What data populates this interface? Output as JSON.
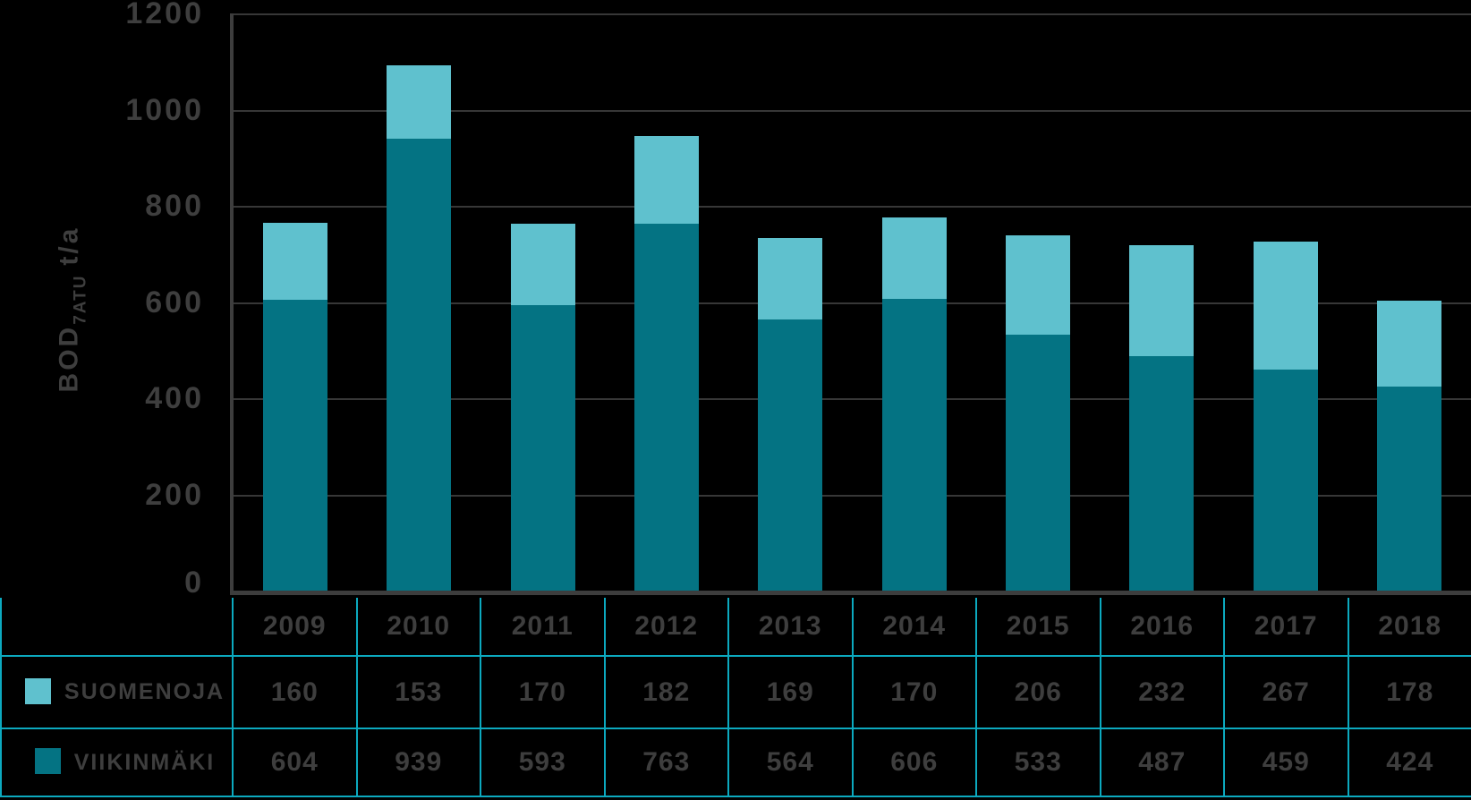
{
  "chart_data": {
    "type": "bar",
    "stacked": true,
    "title": "",
    "xlabel": "",
    "ylabel": {
      "prefix": "BOD",
      "subscript": "7ATU",
      "suffix": "t/a"
    },
    "ylim": [
      0,
      1200
    ],
    "yticks": [
      0,
      200,
      400,
      600,
      800,
      1000,
      1200
    ],
    "grid": true,
    "legend_position": "table-left-column",
    "categories": [
      "2009",
      "2010",
      "2011",
      "2012",
      "2013",
      "2014",
      "2015",
      "2016",
      "2017",
      "2018"
    ],
    "series": [
      {
        "name": "SUOMENOJA",
        "color": "#5fc1ce",
        "stack_position": "top",
        "values": [
          160,
          153,
          170,
          182,
          169,
          170,
          206,
          232,
          267,
          178
        ]
      },
      {
        "name": "VIIKINMÄKI",
        "color": "#047383",
        "stack_position": "bottom",
        "values": [
          604,
          939,
          593,
          763,
          564,
          606,
          533,
          487,
          459,
          424
        ]
      }
    ]
  },
  "colors": {
    "background": "#000000",
    "axis": "#3d3d3d",
    "gridline": "#373737",
    "text": "#3e3e3e",
    "table_border": "#0ca9bf",
    "suomenoja": "#5fc1ce",
    "viikinmaki": "#047383"
  }
}
